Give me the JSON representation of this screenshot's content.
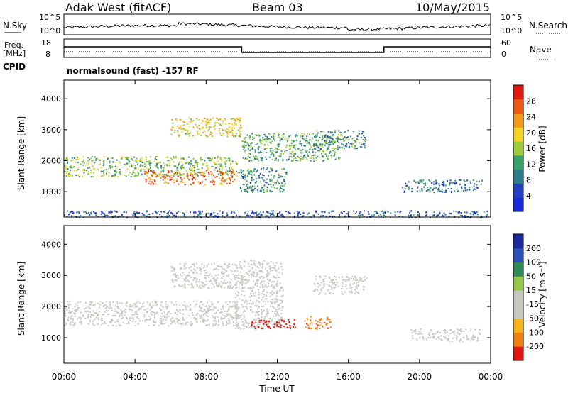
{
  "header": {
    "station": "Adak West (fitACF)",
    "beam": "Beam 03",
    "date": "10/May/2015"
  },
  "noise_panel": {
    "left_label": "N.Sky",
    "right_label": "N.Search",
    "y_ticks": [
      "10^5",
      "10^0"
    ],
    "right_ticks": [
      "10^5",
      "10^0"
    ]
  },
  "freq_panel": {
    "label_line1": "Freq.",
    "label_line2": "[MHz]",
    "left_ticks": [
      "18",
      "8"
    ],
    "right_ticks": [
      "60",
      "0"
    ],
    "right_label": "Nave",
    "cpid_label": "CPID",
    "cpid_text": "normalsound (fast) -157 RF"
  },
  "colors": {
    "power": [
      "#1a2bd9",
      "#243fbf",
      "#2e7d8c",
      "#3aa06b",
      "#9ccc3a",
      "#f5d327",
      "#f29a1f",
      "#ec5b13",
      "#e0180f"
    ],
    "velocity": [
      "#e0150f",
      "#f07f16",
      "#f7b21f",
      "#c8c8c0",
      "#c8c8c0",
      "#93c84a",
      "#2e8b57",
      "#2b50b8",
      "#1a2a9e"
    ],
    "data_gray": "#c0c0bc"
  },
  "chart_data": [
    {
      "type": "heatmap",
      "title": "Power",
      "xlabel": "Time UT",
      "ylabel": "Slant Range [km]",
      "x_ticks": [
        "00:00",
        "04:00",
        "08:00",
        "12:00",
        "16:00",
        "20:00",
        "00:00"
      ],
      "xlim_hours": [
        0,
        24
      ],
      "y_ticks": [
        1000,
        2000,
        3000,
        4000
      ],
      "ylim_km": [
        180,
        4600
      ],
      "colorbar": {
        "label": "Power [dB]",
        "ticks": [
          "4",
          "8",
          "12",
          "16",
          "20",
          "24",
          "28"
        ],
        "range": [
          0,
          30
        ]
      },
      "bands": [
        {
          "t0": 0.0,
          "t1": 9.8,
          "r0": 1500,
          "r1": 2150,
          "level": 14
        },
        {
          "t0": 4.5,
          "t1": 9.6,
          "r0": 1250,
          "r1": 1700,
          "level": 24
        },
        {
          "t0": 6.0,
          "t1": 10.0,
          "r0": 2800,
          "r1": 3400,
          "level": 18
        },
        {
          "t0": 9.8,
          "t1": 12.5,
          "r0": 1000,
          "r1": 1800,
          "level": 10
        },
        {
          "t0": 10.0,
          "t1": 15.5,
          "r0": 2000,
          "r1": 2900,
          "level": 12
        },
        {
          "t0": 14.0,
          "t1": 17.0,
          "r0": 2400,
          "r1": 3000,
          "level": 10
        },
        {
          "t0": 19.0,
          "t1": 23.5,
          "r0": 1000,
          "r1": 1400,
          "level": 8
        },
        {
          "t0": 0.0,
          "t1": 24.0,
          "r0": 180,
          "r1": 400,
          "level": 6
        }
      ]
    },
    {
      "type": "heatmap",
      "title": "Velocity",
      "xlabel": "Time UT",
      "ylabel": "Slant Range [km]",
      "x_ticks": [
        "00:00",
        "04:00",
        "08:00",
        "12:00",
        "16:00",
        "20:00",
        "00:00"
      ],
      "xlim_hours": [
        0,
        24
      ],
      "y_ticks": [
        1000,
        2000,
        3000,
        4000
      ],
      "ylim_km": [
        180,
        4600
      ],
      "colorbar": {
        "label": "Velocity [m s⁻¹]",
        "ticks": [
          "-200",
          "-100",
          "-50",
          "-15",
          "15",
          "50",
          "100",
          "200"
        ],
        "range": [
          -250,
          250
        ]
      },
      "bands": [
        {
          "t0": 0.0,
          "t1": 9.8,
          "r0": 1400,
          "r1": 2200,
          "value": 0
        },
        {
          "t0": 6.0,
          "t1": 10.0,
          "r0": 2600,
          "r1": 3400,
          "value": 0
        },
        {
          "t0": 9.6,
          "t1": 12.3,
          "r0": 1300,
          "r1": 3500,
          "value": -60
        },
        {
          "t0": 10.5,
          "t1": 13.0,
          "r0": 1300,
          "r1": 1600,
          "value": -220
        },
        {
          "t0": 13.5,
          "t1": 15.0,
          "r0": 1300,
          "r1": 1700,
          "value": -180
        },
        {
          "t0": 14.0,
          "t1": 17.0,
          "r0": 2400,
          "r1": 3000,
          "value": 0
        },
        {
          "t0": 19.5,
          "t1": 23.5,
          "r0": 900,
          "r1": 1300,
          "value": 0
        }
      ]
    }
  ]
}
